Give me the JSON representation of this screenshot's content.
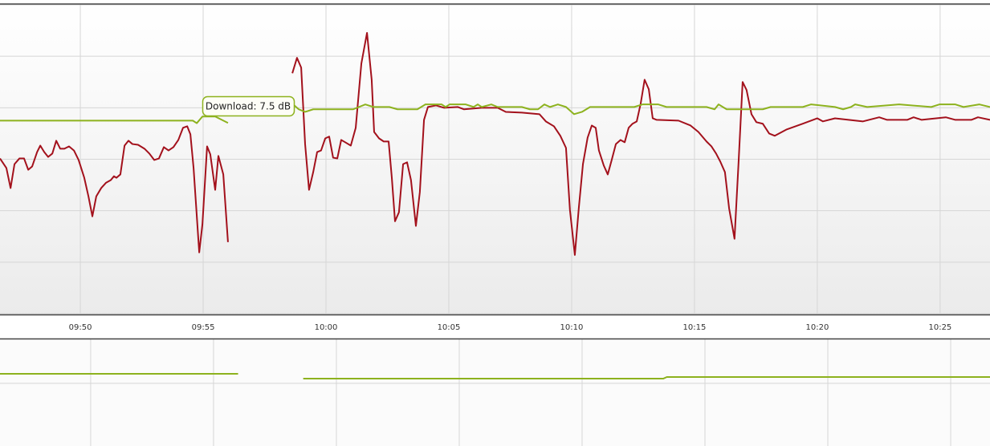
{
  "chart_data": [
    {
      "type": "line",
      "tooltip": "Download: 7.5 dB",
      "xlim": [
        586.73,
        627.03
      ],
      "xticks": [
        {
          "value": 590,
          "label": "09:50"
        },
        {
          "value": 595,
          "label": "09:55"
        },
        {
          "value": 600,
          "label": "10:00"
        },
        {
          "value": 605,
          "label": "10:05"
        },
        {
          "value": 610,
          "label": "10:10"
        },
        {
          "value": 615,
          "label": "10:15"
        },
        {
          "value": 620,
          "label": "10:20"
        },
        {
          "value": 625,
          "label": "10:25"
        }
      ],
      "ylim": [
        0,
        12
      ],
      "yticks": [
        0,
        2,
        4,
        6,
        8,
        10,
        12
      ],
      "grid": true,
      "series": [
        {
          "color": "#a3111c",
          "x": [
            586.73,
            586.99,
            587.16,
            587.32,
            587.52,
            587.71,
            587.88,
            588.04,
            588.24,
            588.37,
            588.53,
            588.69,
            588.86,
            589.02,
            589.18,
            589.35,
            589.54,
            589.74,
            589.93,
            590.16,
            590.33,
            590.49,
            590.65,
            590.85,
            591.05,
            591.24,
            591.37,
            591.47,
            591.63,
            591.8,
            591.96,
            592.12,
            592.35,
            592.61,
            592.81,
            593.01,
            593.2,
            593.4,
            593.59,
            593.79,
            593.99,
            594.18,
            594.35,
            594.48,
            594.61,
            594.84,
            594.97,
            595.16,
            595.29,
            595.49,
            595.62,
            595.82,
            596.01,
            597,
            598.63,
            598.82,
            598.99,
            599.15,
            599.31,
            599.48,
            599.64,
            599.8,
            599.97,
            600.13,
            600.29,
            600.46,
            600.62,
            600.78,
            601.01,
            601.21,
            601.44,
            601.67,
            601.86,
            601.96,
            602.16,
            602.35,
            602.55,
            602.68,
            602.81,
            602.97,
            603.14,
            603.3,
            603.46,
            603.66,
            603.82,
            603.99,
            604.15,
            604.48,
            604.8,
            605.36,
            605.62,
            606.34,
            606.99,
            607.32,
            607.97,
            608.69,
            608.95,
            609.28,
            609.54,
            609.77,
            609.93,
            610.13,
            610.29,
            610.46,
            610.65,
            610.82,
            610.98,
            611.11,
            611.31,
            611.47,
            611.63,
            611.8,
            611.99,
            612.16,
            612.32,
            612.48,
            612.65,
            612.81,
            612.97,
            613.14,
            613.3,
            613.46,
            614.35,
            614.84,
            615.16,
            615.49,
            615.69,
            615.88,
            616.05,
            616.24,
            616.41,
            616.63,
            616.8,
            616.96,
            617.12,
            617.32,
            617.52,
            617.78,
            618.04,
            618.27,
            618.76,
            619.41,
            620,
            620.23,
            620.72,
            621.86,
            622.52,
            622.84,
            623.66,
            623.92,
            624.25,
            625.23,
            625.62,
            626.27,
            626.54,
            627.03
          ],
          "values": [
            6.03,
            5.66,
            4.88,
            5.81,
            6.03,
            6.03,
            5.59,
            5.72,
            6.28,
            6.53,
            6.28,
            6.09,
            6.22,
            6.72,
            6.41,
            6.41,
            6.5,
            6.34,
            5.97,
            5.28,
            4.56,
            3.78,
            4.56,
            4.88,
            5.09,
            5.19,
            5.34,
            5.28,
            5.41,
            6.53,
            6.72,
            6.59,
            6.56,
            6.41,
            6.22,
            5.97,
            6.03,
            6.47,
            6.34,
            6.47,
            6.75,
            7.22,
            7.28,
            6.97,
            5.66,
            2.38,
            3.47,
            6.5,
            6.19,
            4.81,
            6.13,
            5.41,
            2.78,
            null,
            9.34,
            9.94,
            9.56,
            6.59,
            4.81,
            5.5,
            6.28,
            6.34,
            6.81,
            6.88,
            6.06,
            6.03,
            6.75,
            6.66,
            6.53,
            7.22,
            9.72,
            10.91,
            9.09,
            7.06,
            6.81,
            6.69,
            6.69,
            5.28,
            3.59,
            3.94,
            5.81,
            5.88,
            5.19,
            3.41,
            4.72,
            7.53,
            8.03,
            8.09,
            8,
            8.03,
            7.94,
            8,
            8,
            7.84,
            7.81,
            7.75,
            7.47,
            7.28,
            6.91,
            6.44,
            4.03,
            2.28,
            4.09,
            5.81,
            6.84,
            7.31,
            7.22,
            6.34,
            5.75,
            5.41,
            5.97,
            6.59,
            6.75,
            6.66,
            7.22,
            7.38,
            7.47,
            8.16,
            9.09,
            8.72,
            7.59,
            7.53,
            7.5,
            7.31,
            7.06,
            6.69,
            6.5,
            6.22,
            5.91,
            5.5,
            4.09,
            2.91,
            5.97,
            9,
            8.69,
            7.75,
            7.44,
            7.38,
            7,
            6.91,
            7.16,
            7.38,
            7.59,
            7.47,
            7.59,
            7.47,
            7.63,
            7.53,
            7.53,
            7.63,
            7.53,
            7.63,
            7.53,
            7.53,
            7.63,
            7.53
          ]
        },
        {
          "color": "#8db21e",
          "x": [
            586.73,
            594.58,
            594.74,
            594.97,
            595.49,
            596.01,
            597,
            598.63,
            598.89,
            599.15,
            599.48,
            601.11,
            601.6,
            601.93,
            602.58,
            602.91,
            603.72,
            604.05,
            604.71,
            604.87,
            605.03,
            605.69,
            606.01,
            606.18,
            606.34,
            606.73,
            606.99,
            607.97,
            608.3,
            608.63,
            608.89,
            609.12,
            609.44,
            609.77,
            610.1,
            610.42,
            610.75,
            612.55,
            612.88,
            613.53,
            613.86,
            615.49,
            615.82,
            615.98,
            616.31,
            617.78,
            618.1,
            619.41,
            619.74,
            620.72,
            621.05,
            621.37,
            621.54,
            622.03,
            623.33,
            624.64,
            624.97,
            625.62,
            625.95,
            626.6,
            627.03
          ],
          "values": [
            7.5,
            7.5,
            7.4,
            7.66,
            7.66,
            7.41,
            null,
            8.16,
            7.94,
            7.84,
            7.94,
            7.94,
            8.13,
            8.03,
            8.03,
            7.94,
            7.94,
            8.13,
            8.13,
            8.03,
            8.13,
            8.13,
            8.03,
            8.13,
            8.03,
            8.13,
            8.03,
            8.03,
            7.94,
            7.94,
            8.13,
            8.03,
            8.13,
            8.03,
            7.75,
            7.84,
            8.03,
            8.03,
            8.13,
            8.13,
            8.03,
            8.03,
            7.94,
            8.13,
            7.94,
            7.94,
            8.03,
            8.03,
            8.13,
            8.03,
            7.94,
            8.03,
            8.13,
            8.03,
            8.13,
            8.03,
            8.13,
            8.13,
            8.03,
            8.13,
            8.03
          ]
        }
      ]
    },
    {
      "type": "line",
      "xlim": [
        586.31,
        626.6
      ],
      "xticks": [
        590,
        595,
        600,
        605,
        610,
        615,
        620,
        625
      ],
      "ylim": [
        0,
        12
      ],
      "yticks": [
        7
      ],
      "grid": true,
      "series": [
        {
          "color": "#8db21e",
          "x": [
            586.31,
            596.0,
            597.0,
            598.65,
            613.3,
            613.45,
            626.6
          ],
          "values": [
            8.06,
            8.06,
            null,
            7.52,
            7.52,
            7.7,
            7.7
          ]
        }
      ]
    }
  ]
}
